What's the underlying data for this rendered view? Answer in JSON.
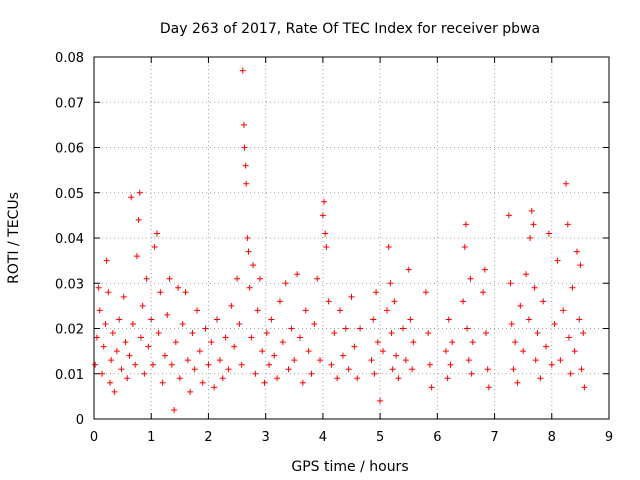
{
  "chart_data": {
    "type": "scatter",
    "title": "Day 263 of 2017, Rate Of TEC Index for receiver pbwa",
    "xlabel": "GPS time / hours",
    "ylabel": "ROTI / TECUs",
    "xlim": [
      0,
      9
    ],
    "ylim": [
      0,
      0.08
    ],
    "xticks": [
      "0",
      "1",
      "2",
      "3",
      "4",
      "5",
      "6",
      "7",
      "8",
      "9"
    ],
    "yticks": [
      "0",
      "0.01",
      "0.02",
      "0.03",
      "0.04",
      "0.05",
      "0.06",
      "0.07",
      "0.08"
    ],
    "grid": true,
    "marker": "+",
    "color": "#ff0000",
    "series": [
      {
        "name": "ROTI",
        "points": [
          [
            0.02,
            0.012
          ],
          [
            0.05,
            0.018
          ],
          [
            0.08,
            0.029
          ],
          [
            0.1,
            0.024
          ],
          [
            0.14,
            0.01
          ],
          [
            0.17,
            0.016
          ],
          [
            0.2,
            0.021
          ],
          [
            0.22,
            0.035
          ],
          [
            0.25,
            0.028
          ],
          [
            0.28,
            0.008
          ],
          [
            0.3,
            0.013
          ],
          [
            0.33,
            0.019
          ],
          [
            0.36,
            0.006
          ],
          [
            0.4,
            0.015
          ],
          [
            0.44,
            0.022
          ],
          [
            0.48,
            0.011
          ],
          [
            0.52,
            0.027
          ],
          [
            0.55,
            0.017
          ],
          [
            0.58,
            0.009
          ],
          [
            0.62,
            0.014
          ],
          [
            0.65,
            0.049
          ],
          [
            0.68,
            0.021
          ],
          [
            0.72,
            0.012
          ],
          [
            0.75,
            0.036
          ],
          [
            0.78,
            0.044
          ],
          [
            0.8,
            0.05
          ],
          [
            0.82,
            0.018
          ],
          [
            0.85,
            0.025
          ],
          [
            0.88,
            0.01
          ],
          [
            0.92,
            0.031
          ],
          [
            0.95,
            0.016
          ],
          [
            1.0,
            0.022
          ],
          [
            1.03,
            0.012
          ],
          [
            1.06,
            0.038
          ],
          [
            1.1,
            0.041
          ],
          [
            1.13,
            0.019
          ],
          [
            1.16,
            0.028
          ],
          [
            1.2,
            0.008
          ],
          [
            1.24,
            0.014
          ],
          [
            1.28,
            0.023
          ],
          [
            1.32,
            0.031
          ],
          [
            1.36,
            0.012
          ],
          [
            1.4,
            0.002
          ],
          [
            1.43,
            0.017
          ],
          [
            1.47,
            0.029
          ],
          [
            1.5,
            0.009
          ],
          [
            1.55,
            0.021
          ],
          [
            1.6,
            0.028
          ],
          [
            1.64,
            0.013
          ],
          [
            1.68,
            0.006
          ],
          [
            1.72,
            0.019
          ],
          [
            1.76,
            0.011
          ],
          [
            1.8,
            0.024
          ],
          [
            1.85,
            0.015
          ],
          [
            1.9,
            0.008
          ],
          [
            1.95,
            0.02
          ],
          [
            2.0,
            0.012
          ],
          [
            2.05,
            0.017
          ],
          [
            2.1,
            0.007
          ],
          [
            2.15,
            0.022
          ],
          [
            2.2,
            0.013
          ],
          [
            2.25,
            0.009
          ],
          [
            2.3,
            0.018
          ],
          [
            2.35,
            0.011
          ],
          [
            2.4,
            0.025
          ],
          [
            2.45,
            0.016
          ],
          [
            2.5,
            0.031
          ],
          [
            2.54,
            0.021
          ],
          [
            2.58,
            0.012
          ],
          [
            2.6,
            0.077
          ],
          [
            2.62,
            0.065
          ],
          [
            2.63,
            0.06
          ],
          [
            2.65,
            0.056
          ],
          [
            2.66,
            0.052
          ],
          [
            2.68,
            0.04
          ],
          [
            2.7,
            0.037
          ],
          [
            2.72,
            0.029
          ],
          [
            2.75,
            0.018
          ],
          [
            2.78,
            0.034
          ],
          [
            2.82,
            0.01
          ],
          [
            2.86,
            0.024
          ],
          [
            2.9,
            0.031
          ],
          [
            2.94,
            0.015
          ],
          [
            2.98,
            0.008
          ],
          [
            3.02,
            0.019
          ],
          [
            3.06,
            0.012
          ],
          [
            3.1,
            0.022
          ],
          [
            3.15,
            0.014
          ],
          [
            3.2,
            0.009
          ],
          [
            3.25,
            0.026
          ],
          [
            3.3,
            0.017
          ],
          [
            3.35,
            0.03
          ],
          [
            3.4,
            0.011
          ],
          [
            3.45,
            0.02
          ],
          [
            3.5,
            0.013
          ],
          [
            3.55,
            0.032
          ],
          [
            3.6,
            0.018
          ],
          [
            3.65,
            0.008
          ],
          [
            3.7,
            0.024
          ],
          [
            3.75,
            0.015
          ],
          [
            3.8,
            0.01
          ],
          [
            3.85,
            0.021
          ],
          [
            3.9,
            0.031
          ],
          [
            3.95,
            0.013
          ],
          [
            4.0,
            0.045
          ],
          [
            4.02,
            0.048
          ],
          [
            4.04,
            0.041
          ],
          [
            4.06,
            0.038
          ],
          [
            4.1,
            0.026
          ],
          [
            4.15,
            0.012
          ],
          [
            4.2,
            0.019
          ],
          [
            4.25,
            0.009
          ],
          [
            4.3,
            0.024
          ],
          [
            4.35,
            0.014
          ],
          [
            4.4,
            0.02
          ],
          [
            4.45,
            0.011
          ],
          [
            4.5,
            0.027
          ],
          [
            4.55,
            0.016
          ],
          [
            4.6,
            0.009
          ],
          [
            4.65,
            0.02
          ],
          [
            4.85,
            0.013
          ],
          [
            4.88,
            0.022
          ],
          [
            4.9,
            0.01
          ],
          [
            4.93,
            0.028
          ],
          [
            4.96,
            0.017
          ],
          [
            5.0,
            0.004
          ],
          [
            5.05,
            0.015
          ],
          [
            5.12,
            0.024
          ],
          [
            5.15,
            0.038
          ],
          [
            5.18,
            0.03
          ],
          [
            5.2,
            0.019
          ],
          [
            5.22,
            0.011
          ],
          [
            5.25,
            0.026
          ],
          [
            5.28,
            0.014
          ],
          [
            5.32,
            0.009
          ],
          [
            5.4,
            0.02
          ],
          [
            5.45,
            0.013
          ],
          [
            5.5,
            0.033
          ],
          [
            5.53,
            0.022
          ],
          [
            5.56,
            0.011
          ],
          [
            5.58,
            0.017
          ],
          [
            5.8,
            0.028
          ],
          [
            5.84,
            0.019
          ],
          [
            5.87,
            0.012
          ],
          [
            5.9,
            0.007
          ],
          [
            6.15,
            0.015
          ],
          [
            6.18,
            0.009
          ],
          [
            6.2,
            0.022
          ],
          [
            6.23,
            0.012
          ],
          [
            6.26,
            0.017
          ],
          [
            6.45,
            0.026
          ],
          [
            6.48,
            0.038
          ],
          [
            6.5,
            0.043
          ],
          [
            6.52,
            0.02
          ],
          [
            6.55,
            0.013
          ],
          [
            6.58,
            0.031
          ],
          [
            6.6,
            0.01
          ],
          [
            6.62,
            0.017
          ],
          [
            6.8,
            0.028
          ],
          [
            6.83,
            0.033
          ],
          [
            6.85,
            0.019
          ],
          [
            6.88,
            0.011
          ],
          [
            6.9,
            0.007
          ],
          [
            7.25,
            0.045
          ],
          [
            7.28,
            0.03
          ],
          [
            7.3,
            0.021
          ],
          [
            7.33,
            0.011
          ],
          [
            7.36,
            0.017
          ],
          [
            7.4,
            0.008
          ],
          [
            7.45,
            0.025
          ],
          [
            7.5,
            0.015
          ],
          [
            7.55,
            0.032
          ],
          [
            7.6,
            0.022
          ],
          [
            7.62,
            0.04
          ],
          [
            7.65,
            0.046
          ],
          [
            7.68,
            0.043
          ],
          [
            7.7,
            0.029
          ],
          [
            7.72,
            0.013
          ],
          [
            7.75,
            0.019
          ],
          [
            7.8,
            0.009
          ],
          [
            7.85,
            0.026
          ],
          [
            7.9,
            0.016
          ],
          [
            7.95,
            0.041
          ],
          [
            8.0,
            0.012
          ],
          [
            8.05,
            0.021
          ],
          [
            8.1,
            0.035
          ],
          [
            8.15,
            0.013
          ],
          [
            8.2,
            0.024
          ],
          [
            8.25,
            0.052
          ],
          [
            8.28,
            0.043
          ],
          [
            8.3,
            0.018
          ],
          [
            8.33,
            0.01
          ],
          [
            8.36,
            0.029
          ],
          [
            8.4,
            0.015
          ],
          [
            8.44,
            0.037
          ],
          [
            8.48,
            0.022
          ],
          [
            8.5,
            0.034
          ],
          [
            8.52,
            0.011
          ],
          [
            8.55,
            0.019
          ],
          [
            8.57,
            0.007
          ]
        ]
      }
    ]
  }
}
